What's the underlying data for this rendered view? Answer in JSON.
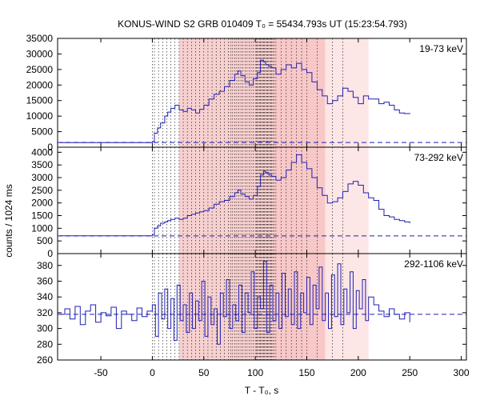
{
  "chart_data": {
    "type": "line",
    "title": "KONUS-WIND S2 GRB 010409 T₀ = 55434.793s UT (15:23:54.793)",
    "xlabel": "T - T₀, s",
    "ylabel": "counts / 1024 ms",
    "xlim": [
      -92,
      305
    ],
    "x_ticks": [
      -50,
      0,
      50,
      100,
      150,
      200,
      250,
      300
    ],
    "dotted_markers_x": [
      0,
      2,
      6,
      10,
      14,
      18,
      22,
      26,
      30,
      34,
      38,
      42,
      46,
      50,
      54,
      58,
      62,
      66,
      70,
      74,
      76,
      78,
      80,
      82,
      84,
      86,
      88,
      90,
      92,
      94,
      96,
      98,
      100,
      101,
      102,
      103,
      104,
      105,
      106,
      107,
      108,
      109,
      110,
      111,
      112,
      113,
      114,
      115,
      116,
      117,
      118,
      120,
      125,
      130,
      135,
      140,
      145,
      150,
      160,
      175,
      185
    ],
    "shaded_regions": [
      {
        "x": [
          26,
          118
        ],
        "color": "#f7d0d0"
      },
      {
        "x": [
          118,
          168
        ],
        "color": "#f8c8c8"
      },
      {
        "x": [
          168,
          210
        ],
        "color": "#fde6e6"
      }
    ],
    "series_color": "#1f1fb4",
    "panels": [
      {
        "label": "19-73 keV",
        "ylim": [
          0,
          35000
        ],
        "y_ticks": [
          0,
          5000,
          10000,
          15000,
          20000,
          25000,
          30000,
          35000
        ],
        "background": 1500,
        "x": [
          -90,
          0,
          2,
          5,
          8,
          12,
          15,
          18,
          22,
          26,
          30,
          34,
          38,
          42,
          46,
          50,
          55,
          60,
          65,
          70,
          75,
          80,
          83,
          86,
          90,
          94,
          98,
          102,
          105,
          108,
          110,
          113,
          116,
          120,
          125,
          130,
          135,
          140,
          145,
          150,
          155,
          160,
          165,
          170,
          175,
          180,
          185,
          190,
          195,
          200,
          205,
          210,
          215,
          220,
          225,
          230,
          235,
          240,
          245,
          250
        ],
        "y": [
          1500,
          1800,
          4500,
          6200,
          7800,
          10000,
          11300,
          12500,
          13500,
          12000,
          11500,
          12500,
          12000,
          11000,
          12200,
          13500,
          15500,
          17000,
          18000,
          19500,
          21500,
          23500,
          24500,
          23000,
          21000,
          20000,
          22000,
          24000,
          28000,
          27500,
          26500,
          26000,
          25500,
          23500,
          25000,
          26500,
          25500,
          27000,
          25000,
          24000,
          21000,
          18500,
          16500,
          14000,
          15000,
          16500,
          19000,
          18000,
          16000,
          14000,
          16500,
          15500,
          15500,
          14000,
          14500,
          13500,
          12000,
          11000,
          10800,
          11000
        ]
      },
      {
        "label": "73-292 keV",
        "ylim": [
          0,
          4200
        ],
        "y_ticks": [
          0,
          500,
          1000,
          1500,
          2000,
          2500,
          3000,
          3500,
          4000
        ],
        "background": 700,
        "x": [
          -90,
          0,
          2,
          5,
          8,
          12,
          15,
          18,
          22,
          26,
          30,
          34,
          38,
          42,
          46,
          50,
          55,
          60,
          65,
          70,
          75,
          80,
          83,
          86,
          90,
          94,
          98,
          102,
          105,
          108,
          110,
          113,
          116,
          120,
          125,
          130,
          135,
          140,
          145,
          150,
          155,
          160,
          165,
          170,
          175,
          180,
          185,
          190,
          195,
          200,
          205,
          210,
          215,
          220,
          225,
          230,
          235,
          240,
          245,
          250
        ],
        "y": [
          700,
          750,
          1000,
          1100,
          1200,
          1250,
          1300,
          1350,
          1400,
          1350,
          1400,
          1500,
          1550,
          1600,
          1650,
          1700,
          1800,
          1950,
          2050,
          2100,
          2250,
          2400,
          2500,
          2350,
          2250,
          2150,
          2300,
          2650,
          3100,
          3250,
          3200,
          3100,
          3050,
          2900,
          3000,
          3300,
          3600,
          3900,
          3600,
          3350,
          3000,
          2600,
          2300,
          2000,
          2050,
          2200,
          2450,
          2750,
          2850,
          2700,
          2400,
          2200,
          2100,
          1750,
          1500,
          1450,
          1350,
          1300,
          1250,
          1200
        ]
      },
      {
        "label": "292-1106 keV",
        "ylim": [
          260,
          395
        ],
        "y_ticks": [
          260,
          280,
          300,
          320,
          340,
          360,
          380
        ],
        "background": 318,
        "x": [
          -90,
          -85,
          -80,
          -75,
          -70,
          -65,
          -60,
          -55,
          -50,
          -45,
          -40,
          -35,
          -30,
          -25,
          -20,
          -15,
          -10,
          -5,
          0,
          3,
          6,
          9,
          12,
          15,
          18,
          21,
          24,
          27,
          30,
          33,
          36,
          39,
          42,
          45,
          48,
          51,
          54,
          57,
          60,
          63,
          66,
          69,
          72,
          75,
          78,
          81,
          84,
          87,
          90,
          93,
          96,
          99,
          102,
          105,
          108,
          111,
          114,
          117,
          120,
          123,
          126,
          129,
          132,
          135,
          138,
          141,
          144,
          147,
          150,
          153,
          156,
          159,
          162,
          165,
          168,
          171,
          174,
          177,
          180,
          183,
          186,
          189,
          192,
          195,
          198,
          201,
          204,
          207,
          210,
          215,
          220,
          225,
          230,
          235,
          240,
          245,
          250
        ],
        "y": [
          318,
          325,
          312,
          328,
          305,
          322,
          330,
          308,
          320,
          316,
          327,
          300,
          322,
          318,
          310,
          326,
          315,
          322,
          330,
          290,
          345,
          312,
          350,
          300,
          338,
          285,
          355,
          310,
          330,
          295,
          345,
          300,
          335,
          310,
          360,
          290,
          340,
          305,
          325,
          280,
          345,
          315,
          362,
          300,
          330,
          310,
          355,
          295,
          345,
          320,
          372,
          300,
          340,
          325,
          385,
          295,
          355,
          310,
          345,
          300,
          370,
          315,
          350,
          305,
          372,
          300,
          345,
          320,
          365,
          305,
          355,
          325,
          378,
          310,
          345,
          300,
          368,
          315,
          382,
          305,
          350,
          320,
          372,
          300,
          348,
          325,
          362,
          310,
          340,
          330,
          322,
          315,
          325,
          318,
          312,
          320,
          308
        ]
      }
    ]
  }
}
